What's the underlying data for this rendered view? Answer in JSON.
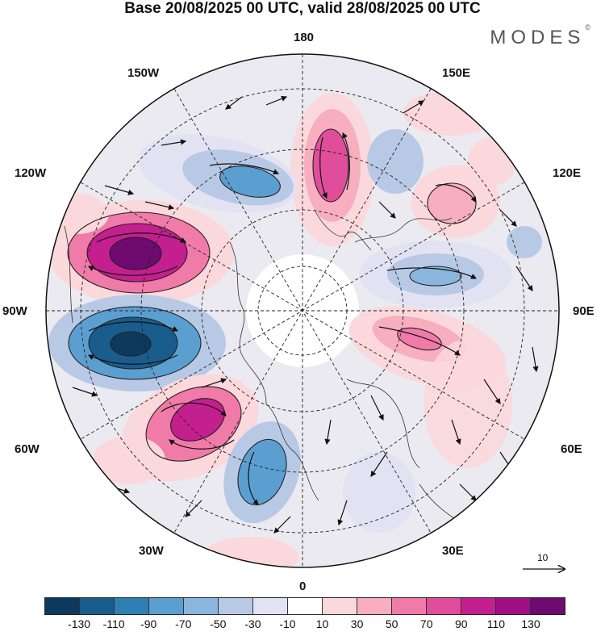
{
  "title": "Base 20/08/2025 00 UTC, valid 28/08/2025 00 UTC",
  "brand": {
    "name": "MODES",
    "mark": "©"
  },
  "longitude_labels": {
    "lon_180": "180",
    "lon_150w": "150W",
    "lon_150e": "150E",
    "lon_120w": "120W",
    "lon_120e": "120E",
    "lon_90w": "90W",
    "lon_90e": "90E",
    "lon_60w": "60W",
    "lon_60e": "60E",
    "lon_30w": "30W",
    "lon_30e": "30E",
    "lon_0": "0"
  },
  "reference_vector": {
    "label": "10"
  },
  "colorbar": {
    "colors": [
      "#0d3a5c",
      "#1a5c8c",
      "#2f7fb5",
      "#5b9fd0",
      "#8ab6de",
      "#b8c9e6",
      "#e2e2f2",
      "#ffffff",
      "#fbd8dc",
      "#f7aebf",
      "#f07aa8",
      "#e04d9b",
      "#c41f8f",
      "#9e0f84",
      "#6e0a70"
    ],
    "ticks": [
      "-130",
      "-110",
      "-90",
      "-70",
      "-50",
      "-30",
      "-10",
      "10",
      "30",
      "50",
      "70",
      "90",
      "110",
      "130"
    ]
  },
  "anomaly_centers": [
    {
      "id": "pos-150w",
      "color": "#9e0f84"
    },
    {
      "id": "neg-90w",
      "color": "#1a5c8c"
    },
    {
      "id": "pos-45w",
      "color": "#c41f8f"
    },
    {
      "id": "neg-20w",
      "color": "#5b9fd0"
    },
    {
      "id": "pos-175e",
      "color": "#e04d9b"
    },
    {
      "id": "neg-145e",
      "color": "#b8c9e6"
    },
    {
      "id": "pos-125e",
      "color": "#f7aebf"
    },
    {
      "id": "neg-100e",
      "color": "#8ab6de"
    },
    {
      "id": "pos-80e",
      "color": "#f07aa8"
    },
    {
      "id": "neg-130w",
      "color": "#5b9fd0"
    }
  ]
}
